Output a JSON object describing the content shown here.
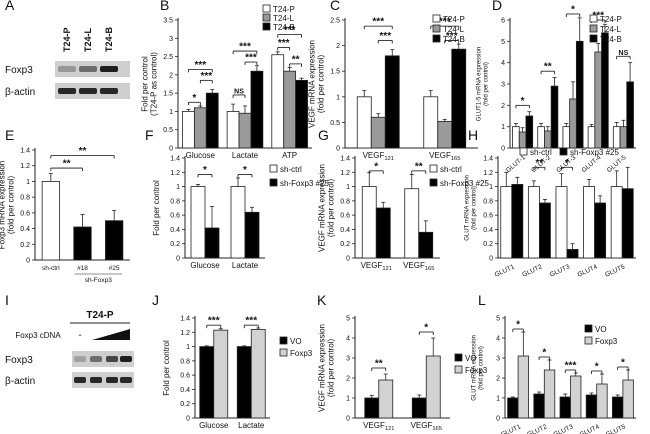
{
  "figure": {
    "letters": [
      "A",
      "B",
      "C",
      "D",
      "E",
      "F",
      "G",
      "H",
      "I",
      "J",
      "K",
      "L"
    ],
    "colors": {
      "white": "#ffffff",
      "gray": "#9a9a9a",
      "black": "#000000",
      "light": "#d2d2d2",
      "axis": "#222222",
      "star_line": "#111111"
    },
    "sig": {
      "one": "*",
      "two": "**",
      "three": "***",
      "ns": "NS"
    }
  },
  "blots": {
    "A": {
      "letter": "A",
      "lanes": [
        "T24-P",
        "T24-L",
        "T24-B"
      ],
      "rows": [
        "Foxp3",
        "β-actin"
      ],
      "band_intensity": {
        "Foxp3": [
          0.35,
          0.55,
          0.95
        ],
        "β-actin": [
          0.9,
          0.9,
          0.9
        ]
      }
    },
    "I": {
      "letter": "I",
      "header": "T24-P",
      "cdna_label": "Foxp3 cDNA",
      "minus_label": "-",
      "rows": [
        "Foxp3",
        "β-actin"
      ],
      "band_intensity": {
        "Foxp3": [
          0.3,
          0.55,
          0.75,
          0.95
        ],
        "β-actin": [
          0.9,
          0.9,
          0.9,
          0.9
        ]
      }
    }
  },
  "chart_data": [
    {
      "panel": "B",
      "type": "bar",
      "ylabel": "Fold per control\n(T24-P as control)",
      "ylim": [
        0,
        3.5
      ],
      "yticks": [
        0,
        0.5,
        1,
        1.5,
        2,
        2.5,
        3,
        3.5
      ],
      "categories": [
        "Glucose",
        "Lactate",
        "ATP"
      ],
      "series": [
        {
          "name": "T24-P",
          "fill": "white",
          "values": [
            1.0,
            1.0,
            2.55
          ],
          "errors": [
            0.05,
            0.2,
            0.08
          ]
        },
        {
          "name": "T24-L",
          "fill": "gray",
          "values": [
            1.1,
            0.95,
            2.1
          ],
          "errors": [
            0.05,
            0.2,
            0.1
          ]
        },
        {
          "name": "T24-B",
          "fill": "black",
          "values": [
            1.5,
            2.1,
            1.85
          ],
          "errors": [
            0.1,
            0.15,
            0.06
          ]
        }
      ],
      "legend": [
        "T24-P",
        "T24-L",
        "T24-B"
      ],
      "sig": [
        {
          "label": "*",
          "c": 0,
          "s1": 0,
          "s2": 1,
          "y": 1.25
        },
        {
          "label": "***",
          "c": 0,
          "s1": 1,
          "s2": 2,
          "y": 1.85
        },
        {
          "label": "***",
          "c": 0,
          "s1": 0,
          "s2": 2,
          "y": 2.15
        },
        {
          "label": "NS",
          "c": 1,
          "s1": 0,
          "s2": 1,
          "y": 1.45
        },
        {
          "label": "***",
          "c": 1,
          "s1": 1,
          "s2": 2,
          "y": 2.35
        },
        {
          "label": "***",
          "c": 1,
          "s1": 0,
          "s2": 2,
          "y": 2.65
        },
        {
          "label": "**",
          "c": 2,
          "s1": 1,
          "s2": 2,
          "y": 2.3
        },
        {
          "label": "***",
          "c": 2,
          "s1": 0,
          "s2": 1,
          "y": 2.75
        },
        {
          "label": "***",
          "c": 2,
          "s1": 0,
          "s2": 2,
          "y": 3.1
        }
      ]
    },
    {
      "panel": "C",
      "type": "bar",
      "ylabel": "VEGF mRNA expression\n(fold per control)",
      "ylim": [
        0,
        2.5
      ],
      "yticks": [
        0,
        0.5,
        1,
        1.5,
        2,
        2.5
      ],
      "categories": [
        "VEGF121",
        "VEGF165"
      ],
      "series": [
        {
          "name": "T24-P",
          "fill": "white",
          "values": [
            1.0,
            1.0
          ],
          "errors": [
            0.12,
            0.12
          ]
        },
        {
          "name": "T24-L",
          "fill": "gray",
          "values": [
            0.6,
            0.52
          ],
          "errors": [
            0.07,
            0.04
          ]
        },
        {
          "name": "T24-B",
          "fill": "black",
          "values": [
            1.8,
            1.93
          ],
          "errors": [
            0.12,
            0.1
          ]
        }
      ],
      "legend": [
        "T24-P",
        "T24-L",
        "T24-B"
      ],
      "sig": [
        {
          "label": "***",
          "c": 0,
          "s1": 1,
          "s2": 2,
          "y": 2.1
        },
        {
          "label": "***",
          "c": 0,
          "s1": 0,
          "s2": 2,
          "y": 2.38
        },
        {
          "label": "***",
          "c": 1,
          "s1": 1,
          "s2": 2,
          "y": 2.1
        },
        {
          "label": "***",
          "c": 1,
          "s1": 0,
          "s2": 2,
          "y": 2.38
        }
      ]
    },
    {
      "panel": "D",
      "type": "bar",
      "ylabel": "GLUT1-5 mRNA expression\n(fold per control)",
      "ylim": [
        0,
        6
      ],
      "yticks": [
        0,
        1,
        2,
        3,
        4,
        5,
        6
      ],
      "categories": [
        "GLUT-1",
        "GLUT-2",
        "GLUT-3",
        "GLUT-4",
        "GLUT-5"
      ],
      "series": [
        {
          "name": "T24-P",
          "fill": "white",
          "values": [
            1.0,
            1.0,
            1.0,
            1.0,
            1.0
          ],
          "errors": [
            0.15,
            0.15,
            0.15,
            0.1,
            0.2
          ]
        },
        {
          "name": "T24-L",
          "fill": "gray",
          "values": [
            0.75,
            0.8,
            2.3,
            4.5,
            1.0
          ],
          "errors": [
            0.2,
            0.2,
            0.8,
            0.4,
            0.3
          ]
        },
        {
          "name": "T24-B",
          "fill": "black",
          "values": [
            1.5,
            2.9,
            5.0,
            5.4,
            3.1
          ],
          "errors": [
            0.2,
            0.4,
            1.1,
            0.4,
            0.9
          ]
        }
      ],
      "legend": [
        "T24-P",
        "T24-L",
        "T24-B"
      ],
      "sig": [
        {
          "label": "*",
          "c": 0,
          "s1": 0,
          "s2": 2,
          "y": 2.0
        },
        {
          "label": "**",
          "c": 1,
          "s1": 0,
          "s2": 2,
          "y": 3.6
        },
        {
          "label": "*",
          "c": 2,
          "s1": 0,
          "s2": 2,
          "y": 6.3
        },
        {
          "label": "***",
          "c": 3,
          "s1": 0,
          "s2": 2,
          "y": 6.0
        },
        {
          "label": "NS",
          "c": 4,
          "s1": 0,
          "s2": 2,
          "y": 4.3
        }
      ]
    },
    {
      "panel": "E",
      "type": "bar",
      "ylabel": "Foxp3 mRNA expression\n(fold per control)",
      "ylim": [
        0,
        1.4
      ],
      "yticks": [
        0,
        0.2,
        0.4,
        0.6,
        0.8,
        1,
        1.2,
        1.4
      ],
      "categories": [
        "sh-ctrl",
        "#18",
        "#25"
      ],
      "group_label": "sh-Foxp3",
      "series": [
        {
          "name": "Foxp3",
          "fills": [
            "white",
            "black",
            "black"
          ],
          "values": [
            1.0,
            0.42,
            0.5
          ],
          "errors": [
            0.1,
            0.16,
            0.13
          ]
        }
      ],
      "sig": [
        {
          "label": "**",
          "c1": 0,
          "c2": 1,
          "y": 1.17
        },
        {
          "label": "**",
          "c1": 0,
          "c2": 2,
          "y": 1.33
        }
      ]
    },
    {
      "panel": "F",
      "type": "bar",
      "ylabel": "Fold per control",
      "ylim": [
        0,
        1.4
      ],
      "yticks": [
        0,
        0.2,
        0.4,
        0.6,
        0.8,
        1,
        1.2,
        1.4
      ],
      "categories": [
        "Glucose",
        "Lactate"
      ],
      "series": [
        {
          "name": "sh-ctrl",
          "fill": "white",
          "values": [
            1.0,
            1.0
          ],
          "errors": [
            0.03,
            0.12
          ]
        },
        {
          "name": "sh-Foxp3 #25",
          "fill": "black",
          "values": [
            0.42,
            0.64
          ],
          "errors": [
            0.3,
            0.07
          ]
        }
      ],
      "legend": [
        "sh-ctrl",
        "sh-Foxp3 #25"
      ],
      "sig": [
        {
          "label": "*",
          "c": 0,
          "s1": 0,
          "s2": 1,
          "y": 1.17
        },
        {
          "label": "*",
          "c": 1,
          "s1": 0,
          "s2": 1,
          "y": 1.17
        }
      ]
    },
    {
      "panel": "G",
      "type": "bar",
      "ylabel": "VEGF mRNA expression\n(fold per control)",
      "ylim": [
        0,
        1.4
      ],
      "yticks": [
        0,
        0.2,
        0.4,
        0.6,
        0.8,
        1,
        1.2,
        1.4
      ],
      "categories": [
        "VEGF121",
        "VEGF165"
      ],
      "series": [
        {
          "name": "sh-ctrl",
          "fill": "white",
          "values": [
            1.0,
            0.97
          ],
          "errors": [
            0.2,
            0.2
          ]
        },
        {
          "name": "sh-Foxp3 #25",
          "fill": "black",
          "values": [
            0.7,
            0.36
          ],
          "errors": [
            0.08,
            0.16
          ]
        }
      ],
      "legend": [
        "sh-ctrl",
        "sh-Foxp3 #25"
      ],
      "sig": [
        {
          "label": "*",
          "c": 0,
          "s1": 0,
          "s2": 1,
          "y": 1.22
        },
        {
          "label": "**",
          "c": 1,
          "s1": 0,
          "s2": 1,
          "y": 1.22
        }
      ]
    },
    {
      "panel": "H",
      "type": "bar",
      "ylabel": "GLUT mRNA expression\n(fold per control)",
      "ylim": [
        0,
        1.4
      ],
      "yticks": [
        0,
        0.2,
        0.4,
        0.6,
        0.8,
        1,
        1.2,
        1.4
      ],
      "categories": [
        "GLUT1",
        "GLUT2",
        "GLUT3",
        "GLUT4",
        "GLUT5"
      ],
      "series": [
        {
          "name": "sh-ctrl",
          "fill": "white",
          "values": [
            1.0,
            1.0,
            1.0,
            1.0,
            1.0
          ],
          "errors": [
            0.2,
            0.08,
            0.18,
            0.1,
            0.22
          ]
        },
        {
          "name": "sh-Foxp3 #25",
          "fill": "black",
          "values": [
            1.03,
            0.77,
            0.12,
            0.77,
            0.97
          ],
          "errors": [
            0.1,
            0.05,
            0.08,
            0.1,
            0.3
          ]
        }
      ],
      "legend": [
        "sh-ctrl",
        "sh-Foxp3 #25"
      ],
      "sig": [
        {
          "label": "**",
          "c": 1,
          "s1": 0,
          "s2": 1,
          "y": 1.27
        },
        {
          "label": "*",
          "c": 2,
          "s1": 0,
          "s2": 1,
          "y": 1.27
        }
      ]
    },
    {
      "panel": "J",
      "type": "bar",
      "ylabel": "Fold per control",
      "ylim": [
        0,
        1.4
      ],
      "yticks": [
        0,
        0.2,
        0.4,
        0.6,
        0.8,
        1,
        1.2,
        1.4
      ],
      "categories": [
        "Glucose",
        "Lactate"
      ],
      "series": [
        {
          "name": "VO",
          "fill": "black",
          "values": [
            1.0,
            1.0
          ],
          "errors": [
            0.01,
            0.01
          ]
        },
        {
          "name": "Foxp3",
          "fill": "light",
          "values": [
            1.23,
            1.24
          ],
          "errors": [
            0.02,
            0.02
          ]
        }
      ],
      "legend": [
        "VO",
        "Foxp3"
      ],
      "sig": [
        {
          "label": "***",
          "c": 0,
          "s1": 0,
          "s2": 1,
          "y": 1.3
        },
        {
          "label": "***",
          "c": 1,
          "s1": 0,
          "s2": 1,
          "y": 1.3
        }
      ]
    },
    {
      "panel": "K",
      "type": "bar",
      "ylabel": "VEGF mRNA expression\n(fold per control)",
      "ylim": [
        0,
        5
      ],
      "yticks": [
        0,
        1,
        2,
        3,
        4,
        5
      ],
      "categories": [
        "VEGF121",
        "VEGF165"
      ],
      "series": [
        {
          "name": "VO",
          "fill": "black",
          "values": [
            1.0,
            1.0
          ],
          "errors": [
            0.12,
            0.15
          ]
        },
        {
          "name": "Foxp3",
          "fill": "light",
          "values": [
            1.9,
            3.1
          ],
          "errors": [
            0.3,
            0.9
          ]
        }
      ],
      "legend": [
        "VO",
        "Foxp3"
      ],
      "sig": [
        {
          "label": "**",
          "c": 0,
          "s1": 0,
          "s2": 1,
          "y": 2.5
        },
        {
          "label": "*",
          "c": 1,
          "s1": 0,
          "s2": 1,
          "y": 4.3
        }
      ]
    },
    {
      "panel": "L",
      "type": "bar",
      "ylabel": "GLUT mRNA expression\n(fold per control)",
      "ylim": [
        0,
        5
      ],
      "yticks": [
        0,
        1,
        2,
        3,
        4,
        5
      ],
      "categories": [
        "GLUT1",
        "GLUT2",
        "GLUT3",
        "GLUT4",
        "GLUT5"
      ],
      "series": [
        {
          "name": "VO",
          "fill": "black",
          "values": [
            1.0,
            1.2,
            1.05,
            1.15,
            1.05
          ],
          "errors": [
            0.05,
            0.1,
            0.15,
            0.1,
            0.1
          ]
        },
        {
          "name": "Foxp3",
          "fill": "light",
          "values": [
            3.1,
            2.4,
            2.1,
            1.7,
            1.9
          ],
          "errors": [
            1.2,
            0.5,
            0.15,
            0.5,
            0.5
          ]
        }
      ],
      "legend": [
        "VO",
        "Foxp3"
      ],
      "sig": [
        {
          "label": "*",
          "c": 0,
          "s1": 0,
          "s2": 1,
          "y": 4.45
        },
        {
          "label": "*",
          "c": 1,
          "s1": 0,
          "s2": 1,
          "y": 3.05
        },
        {
          "label": "***",
          "c": 2,
          "s1": 0,
          "s2": 1,
          "y": 2.4
        },
        {
          "label": "*",
          "c": 3,
          "s1": 0,
          "s2": 1,
          "y": 2.35
        },
        {
          "label": "*",
          "c": 4,
          "s1": 0,
          "s2": 1,
          "y": 2.55
        }
      ]
    }
  ]
}
